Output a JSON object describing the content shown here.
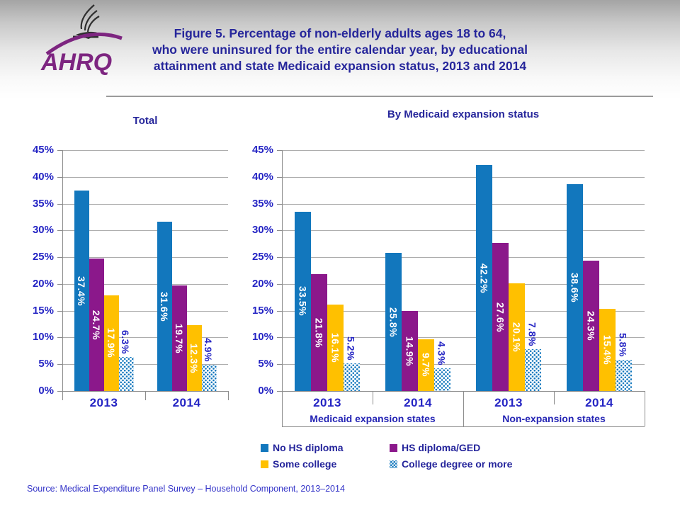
{
  "header": {
    "logo": {
      "text": "AHRQ",
      "eagle_icon": "hhs-eagle-icon"
    },
    "title_lines": [
      "Figure 5. Percentage of non-elderly adults ages 18 to 64,",
      "who were uninsured for the entire calendar year, by educational",
      "attainment and state Medicaid expansion status, 2013 and 2014"
    ]
  },
  "colors": {
    "bar_blue": "#1277bd",
    "bar_purple": "#8b188b",
    "bar_yellow": "#ffc000",
    "title_navy": "#26269b",
    "axis_blue": "#2525c4",
    "grid_gray": "#adadad",
    "logo_purple": "#7d2580",
    "value_label_white": "#ffffff"
  },
  "legend": {
    "items": [
      {
        "label": "No HS diploma",
        "swatch": "#1277bd"
      },
      {
        "label": "HS diploma/GED",
        "swatch": "#8b188b"
      },
      {
        "label": "Some college",
        "swatch": "#ffc000"
      },
      {
        "label": "College degree or more",
        "swatch": "dots"
      }
    ]
  },
  "source": "Source: Medical Expenditure Panel Survey – Household Component, 2013–2014",
  "chart_data": [
    {
      "type": "bar",
      "title": "Total",
      "categories": [
        "2013",
        "2014"
      ],
      "series": [
        {
          "name": "No HS diploma",
          "color": "#1277bd",
          "values": [
            37.4,
            31.6
          ]
        },
        {
          "name": "HS diploma/GED",
          "color": "#8b188b",
          "values": [
            24.7,
            19.7
          ]
        },
        {
          "name": "Some college",
          "color": "#ffc000",
          "values": [
            17.9,
            12.3
          ]
        },
        {
          "name": "College degree or more",
          "pattern": "dots",
          "label_position": "above",
          "values": [
            6.3,
            4.9
          ]
        }
      ],
      "ylabel_format": "percent",
      "ylim": [
        0,
        45
      ],
      "ytick_step": 5,
      "grid": true,
      "legend_position": "bottom"
    },
    {
      "type": "bar",
      "title": "By Medicaid expansion status",
      "categories": [
        "2013",
        "2014",
        "2013",
        "2014"
      ],
      "group_labels": [
        "Medicaid expansion states",
        "Non-expansion states"
      ],
      "series": [
        {
          "name": "No HS diploma",
          "color": "#1277bd",
          "values": [
            33.5,
            25.8,
            42.2,
            38.6
          ]
        },
        {
          "name": "HS diploma/GED",
          "color": "#8b188b",
          "values": [
            21.8,
            14.9,
            27.6,
            24.3
          ]
        },
        {
          "name": "Some college",
          "color": "#ffc000",
          "values": [
            16.1,
            9.7,
            20.1,
            15.4
          ]
        },
        {
          "name": "College degree or more",
          "pattern": "dots",
          "label_position": "above",
          "values": [
            5.2,
            4.3,
            7.8,
            5.8
          ]
        }
      ],
      "ylabel_format": "percent",
      "ylim": [
        0,
        45
      ],
      "ytick_step": 5,
      "grid": true,
      "legend_position": "bottom"
    }
  ]
}
